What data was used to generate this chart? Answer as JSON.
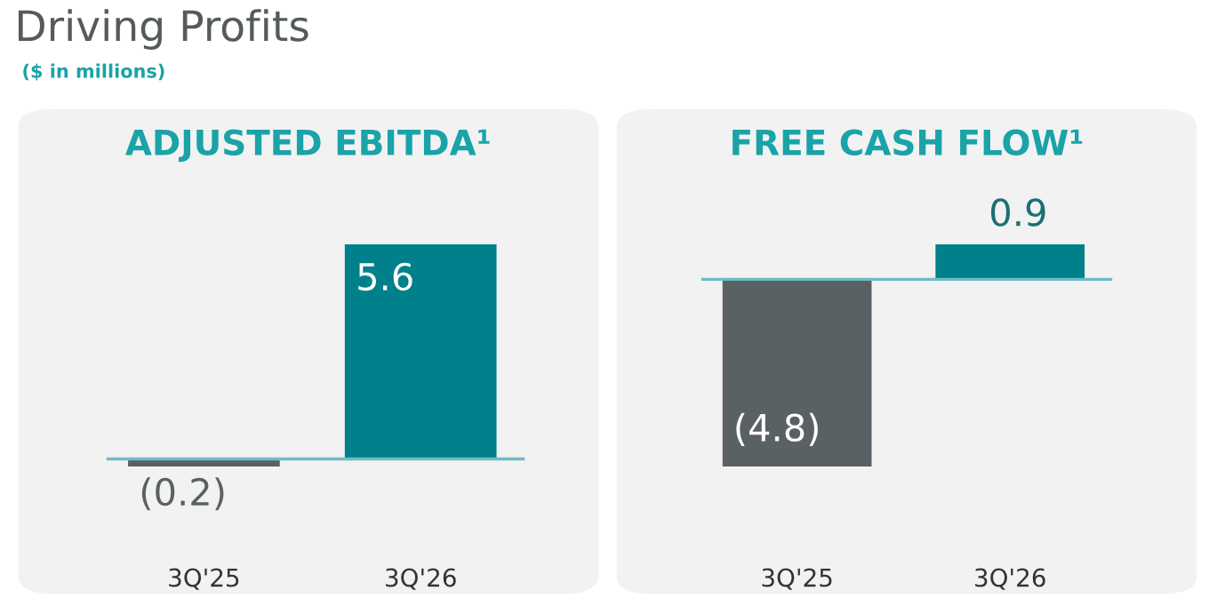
{
  "chart_data": [
    {
      "type": "other",
      "title": "Driving Profits",
      "subtitle": "($ in millions)"
    },
    {
      "type": "bar",
      "title": "ADJUSTED EBITDA¹",
      "categories": [
        "3Q'25",
        "3Q'26"
      ],
      "values": [
        -0.2,
        5.6
      ],
      "colors": [
        "#5a6164",
        "#00808a"
      ],
      "value_labels": [
        "(0.2)",
        "5.6"
      ],
      "ref_lines": [
        {
          "axis": "y",
          "value": 0,
          "color": "#6fbcc4"
        }
      ],
      "tick_labels": "x",
      "grid": false,
      "legend": false
    },
    {
      "type": "bar",
      "title": "FREE CASH FLOW¹",
      "categories": [
        "3Q'25",
        "3Q'26"
      ],
      "values": [
        -4.8,
        0.9
      ],
      "colors": [
        "#5a6164",
        "#00808a"
      ],
      "value_labels": [
        "(4.8)",
        "0.9"
      ],
      "ref_lines": [
        {
          "axis": "y",
          "value": 0,
          "color": "#6fbcc4"
        }
      ],
      "tick_labels": "x",
      "grid": false,
      "legend": false
    }
  ]
}
